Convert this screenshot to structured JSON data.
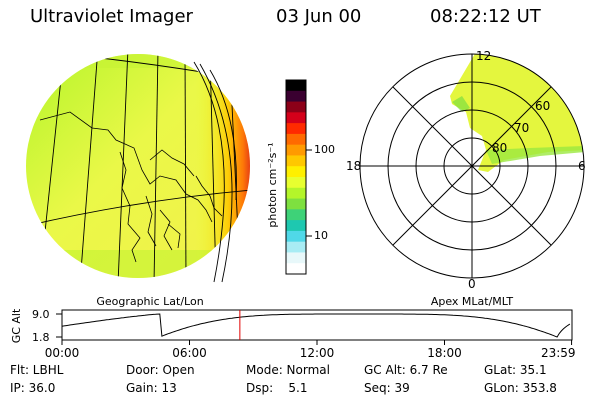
{
  "header": {
    "instrument": "Ultraviolet Imager",
    "date": "03 Jun 00",
    "time": "08:22:12 UT"
  },
  "colorbar": {
    "unit_label": "photon cm⁻²s⁻¹",
    "ticks": [
      {
        "label": "100",
        "value": 100
      },
      {
        "label": "10",
        "value": 10
      }
    ],
    "colors": [
      "#000000",
      "#3a0030",
      "#8c0018",
      "#d4001a",
      "#ff2a00",
      "#ff6a00",
      "#ff9a00",
      "#ffc800",
      "#fff000",
      "#e8ff30",
      "#b4f52a",
      "#7ee040",
      "#3ed278",
      "#1ec8b0",
      "#50d8e8",
      "#a8ecf4",
      "#e8f8fa",
      "#ffffff"
    ]
  },
  "left_panel": {
    "label": "Geographic Lat/Lon"
  },
  "right_panel": {
    "label": "Apex MLat/MLT",
    "mlt_labels": [
      {
        "label": "12",
        "pos": "top"
      },
      {
        "label": "18",
        "pos": "left"
      },
      {
        "label": "6",
        "pos": "right"
      },
      {
        "label": "0",
        "pos": "bottom"
      }
    ],
    "mlat_labels": [
      "60",
      "70",
      "80"
    ]
  },
  "altitude_plot": {
    "ylabel": "GC Alt",
    "ytick_top": "9.0",
    "ytick_bottom": "1.8",
    "ytick_top_value": 9.0,
    "ytick_bottom_value": 1.8,
    "current_time_hours": 8.37,
    "xticks": [
      {
        "label": "00:00",
        "hours": 0
      },
      {
        "label": "06:00",
        "hours": 6
      },
      {
        "label": "12:00",
        "hours": 12
      },
      {
        "label": "18:00",
        "hours": 18
      },
      {
        "label": "23:59",
        "hours": 23.98
      }
    ]
  },
  "info_rows": [
    [
      {
        "text": "Flt: LBHL"
      },
      {
        "text": "Door: Open"
      },
      {
        "text": "Mode: Normal"
      },
      {
        "text": "GC Alt: 6.7 Re"
      },
      {
        "text": "GLat: 35.1"
      }
    ],
    [
      {
        "text": "IP: 36.0"
      },
      {
        "text": "Gain: 13"
      },
      {
        "text": "Dsp:    5.1"
      },
      {
        "text": "Seq: 39"
      },
      {
        "text": "GLon: 353.8"
      }
    ]
  ]
}
